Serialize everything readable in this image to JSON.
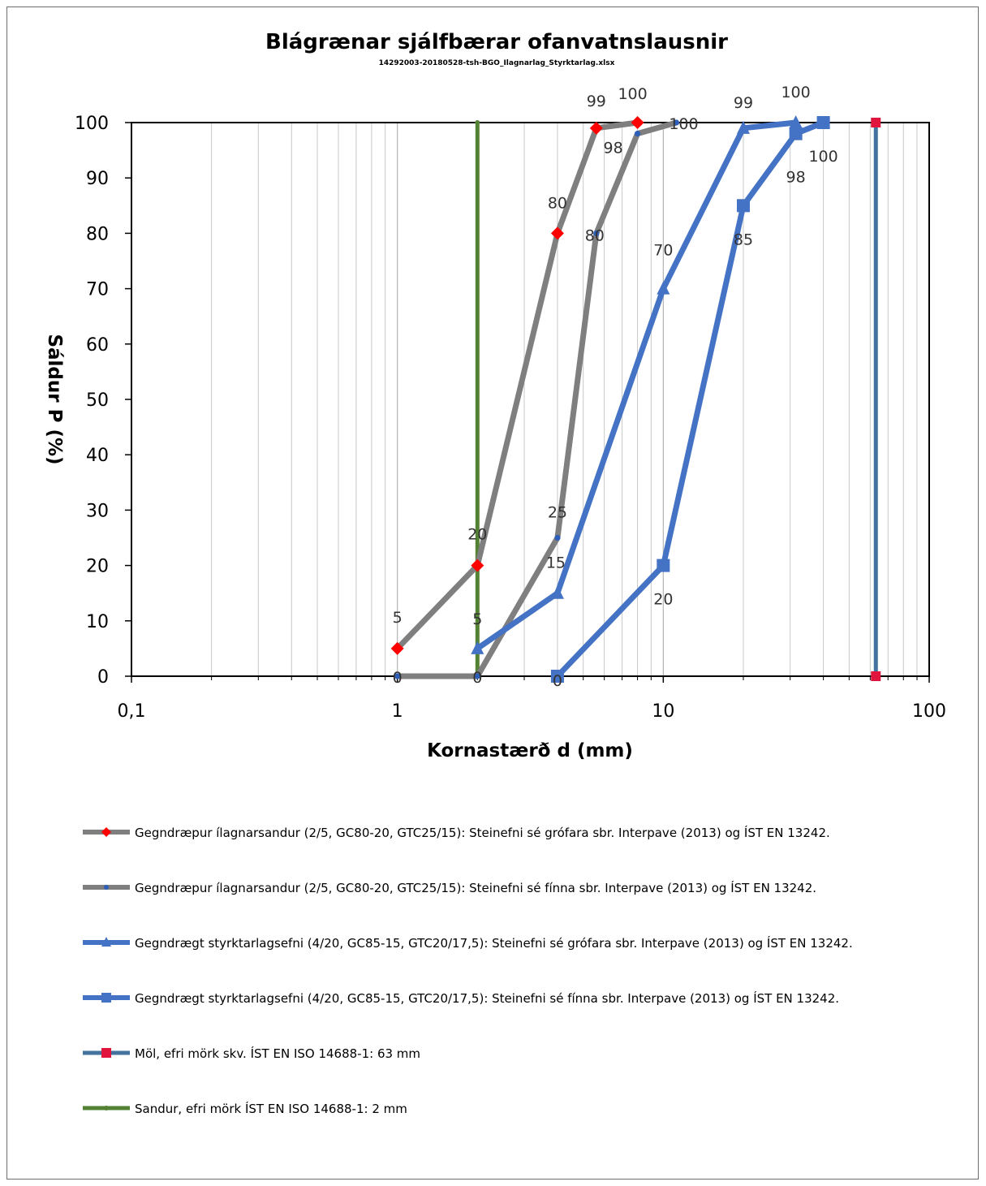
{
  "chart_data": {
    "type": "line",
    "title": "Blágrænar sjálfbærar ofanvatnslausnir",
    "subtitle": "14292003-20180528-tsh-BGO_Ilagnarlag_Styrktarlag.xlsx",
    "xlabel": "Kornastærð d (mm)",
    "ylabel": "Sáldur P (%)",
    "xscale": "log",
    "xlim": [
      0.1,
      100
    ],
    "ylim": [
      0,
      100
    ],
    "x_tick_labels": [
      "0,1",
      "1",
      "10",
      "100"
    ],
    "y_tick_labels": [
      "0",
      "10",
      "20",
      "30",
      "40",
      "50",
      "60",
      "70",
      "80",
      "90",
      "100"
    ],
    "grid": "vertical log minor + major gridlines",
    "legend_position": "bottom",
    "series": [
      {
        "name": "Gegndræpur ílagnarsandur (2/5, GC80-20, GTC25/15): Steinefni sé grófara sbr. Interpave (2013) og ÍST EN 13242.",
        "color": "#7f7f7f",
        "marker": "diamond",
        "marker_color": "#ff0000",
        "x": [
          1,
          2,
          4,
          5.6,
          8
        ],
        "y": [
          5,
          20,
          80,
          99,
          100
        ],
        "labels": [
          "5",
          "20",
          "80",
          "99",
          "100"
        ]
      },
      {
        "name": "Gegndræpur ílagnarsandur (2/5, GC80-20, GTC25/15): Steinefni sé fínna sbr. Interpave (2013) og ÍST EN 13242.",
        "color": "#7f7f7f",
        "marker": "circle",
        "marker_color": "#2e5fb8",
        "x": [
          1,
          2,
          4,
          5.6,
          8,
          11.2
        ],
        "y": [
          0,
          0,
          25,
          80,
          98,
          100
        ],
        "labels": [
          "0",
          "0",
          "25",
          "80",
          "98",
          "100"
        ]
      },
      {
        "name": "Gegndrægt styrktarlagsefni (4/20, GC85-15, GTC20/17,5): Steinefni sé grófara sbr. Interpave (2013) og ÍST EN 13242.",
        "color": "#4472c4",
        "marker": "triangle",
        "marker_color": "#4472c4",
        "x": [
          2,
          4,
          10,
          20,
          31.5
        ],
        "y": [
          5,
          15,
          70,
          99,
          100
        ],
        "labels": [
          "5",
          "15",
          "70",
          "99",
          "100"
        ]
      },
      {
        "name": "Gegndrægt styrktarlagsefni (4/20, GC85-15, GTC20/17,5): Steinefni sé fínna sbr. Interpave (2013) og ÍST EN 13242.",
        "color": "#4472c4",
        "marker": "square",
        "marker_color": "#4472c4",
        "x": [
          4,
          10,
          20,
          31.5,
          40
        ],
        "y": [
          0,
          20,
          85,
          98,
          100
        ],
        "labels": [
          "0",
          "20",
          "85",
          "98",
          "100"
        ]
      },
      {
        "name": "Möl, efri mörk skv. ÍST EN ISO 14688-1: 63 mm",
        "color": "#44729e",
        "marker": "square",
        "marker_color": "#e0143c",
        "x": [
          63,
          63
        ],
        "y": [
          0,
          100
        ],
        "labels": []
      },
      {
        "name": "Sandur, efri mörk ÍST EN ISO 14688-1: 2 mm",
        "color": "#548235",
        "marker": "circle",
        "marker_color": "#548235",
        "x": [
          2,
          2
        ],
        "y": [
          0,
          100
        ],
        "labels": []
      }
    ]
  }
}
